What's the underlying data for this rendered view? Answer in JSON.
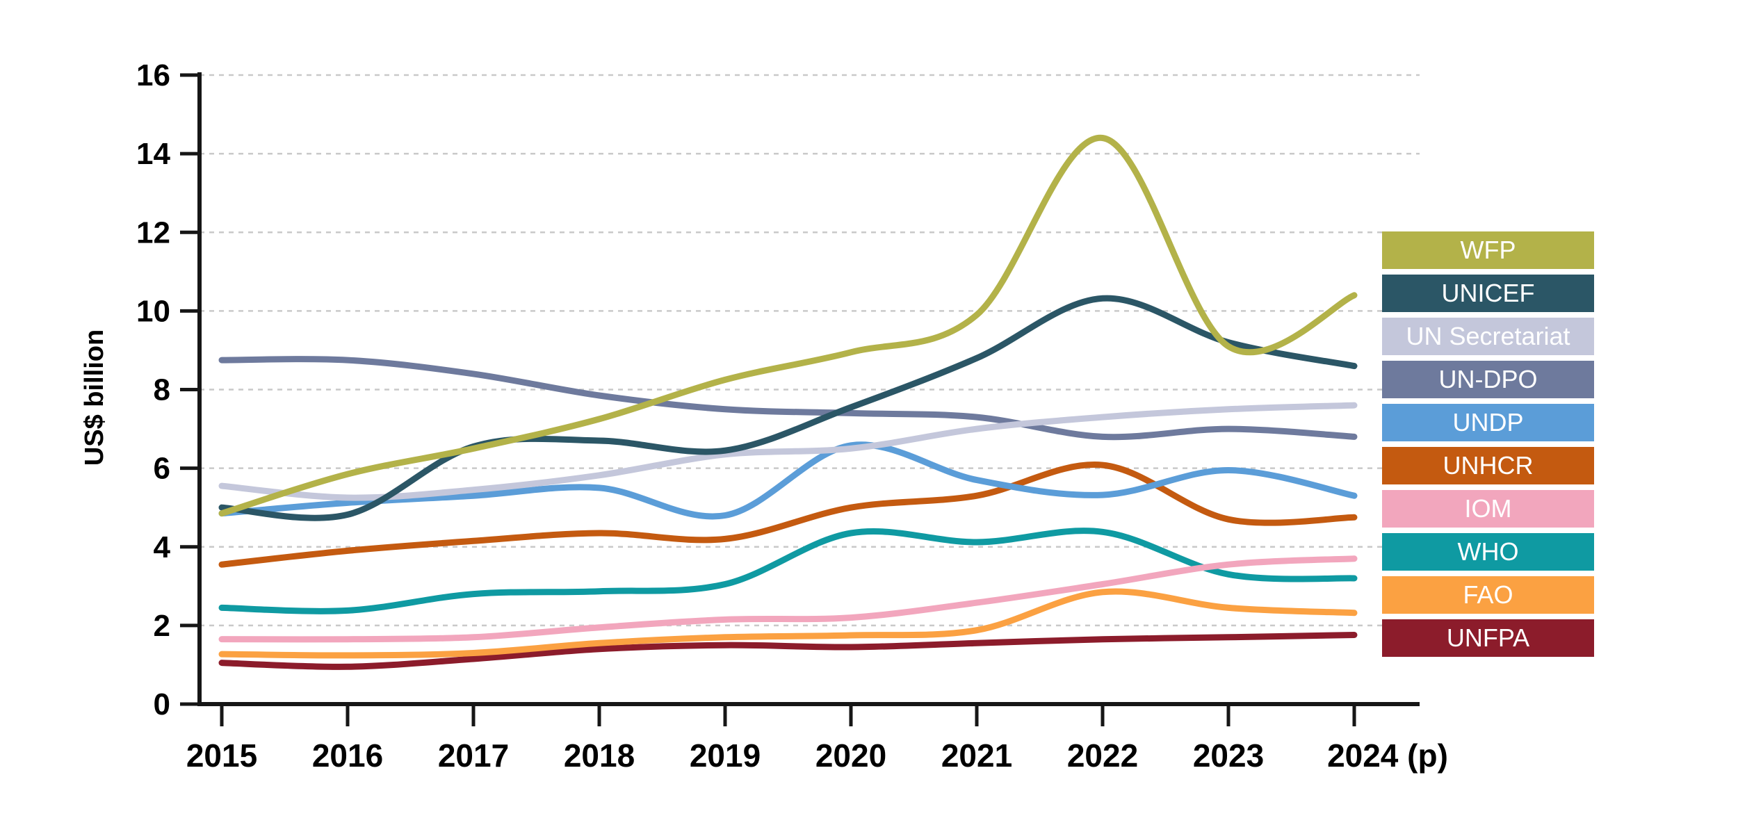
{
  "chart_data": {
    "type": "line",
    "title": "",
    "ylabel": "US$ billion",
    "xlabel": "",
    "ylim": [
      0,
      16
    ],
    "y_ticks": [
      0,
      2,
      4,
      6,
      8,
      10,
      12,
      14,
      16
    ],
    "grid": "horizontal-dashed",
    "legend_position": "right",
    "x": [
      2015,
      2016,
      2017,
      2018,
      2019,
      2020,
      2021,
      2022,
      2023,
      2024
    ],
    "x_tick_labels": [
      "2015",
      "2016",
      "2017",
      "2018",
      "2019",
      "2020",
      "2021",
      "2022",
      "2023",
      "2024 (p)"
    ],
    "series": [
      {
        "name": "WFP",
        "color": "#b3b249",
        "values": [
          4.85,
          5.85,
          6.5,
          7.25,
          8.25,
          8.95,
          9.9,
          14.4,
          9.1,
          10.4
        ]
      },
      {
        "name": "UNICEF",
        "color": "#2b5666",
        "values": [
          5.0,
          4.82,
          6.55,
          6.7,
          6.45,
          7.55,
          8.8,
          10.32,
          9.2,
          8.6
        ]
      },
      {
        "name": "UN Secretariat",
        "color": "#c4c7db",
        "values": [
          5.55,
          5.25,
          5.45,
          5.82,
          6.35,
          6.5,
          7.0,
          7.3,
          7.5,
          7.6
        ]
      },
      {
        "name": "UN-DPO",
        "color": "#6e7a9d",
        "values": [
          8.75,
          8.75,
          8.4,
          7.85,
          7.5,
          7.4,
          7.3,
          6.8,
          7.0,
          6.8
        ]
      },
      {
        "name": "UNDP",
        "color": "#5b9dd8",
        "values": [
          4.85,
          5.12,
          5.3,
          5.5,
          4.8,
          6.58,
          5.7,
          5.32,
          5.95,
          5.3
        ]
      },
      {
        "name": "UNHCR",
        "color": "#c45a10",
        "values": [
          3.55,
          3.9,
          4.15,
          4.35,
          4.2,
          5.0,
          5.3,
          6.08,
          4.7,
          4.75
        ]
      },
      {
        "name": "IOM",
        "color": "#f2a6bd",
        "values": [
          1.65,
          1.65,
          1.7,
          1.95,
          2.15,
          2.2,
          2.58,
          3.05,
          3.55,
          3.7
        ]
      },
      {
        "name": "WHO",
        "color": "#0f9aa2",
        "values": [
          2.45,
          2.38,
          2.8,
          2.87,
          3.05,
          4.35,
          4.12,
          4.38,
          3.3,
          3.2
        ]
      },
      {
        "name": "FAO",
        "color": "#fba142",
        "values": [
          1.27,
          1.24,
          1.3,
          1.55,
          1.7,
          1.75,
          1.88,
          2.85,
          2.45,
          2.32
        ]
      },
      {
        "name": "UNFPA",
        "color": "#8c1c2b",
        "values": [
          1.05,
          0.95,
          1.15,
          1.4,
          1.5,
          1.45,
          1.55,
          1.65,
          1.7,
          1.76
        ]
      }
    ]
  },
  "legend": {
    "items": [
      "WFP",
      "UNICEF",
      "UN Secretariat",
      "UN-DPO",
      "UNDP",
      "UNHCR",
      "IOM",
      "WHO",
      "FAO",
      "UNFPA"
    ]
  },
  "style": {
    "axis_color": "#161616",
    "gridline_color": "#c9c9c9",
    "background": "#ffffff"
  }
}
